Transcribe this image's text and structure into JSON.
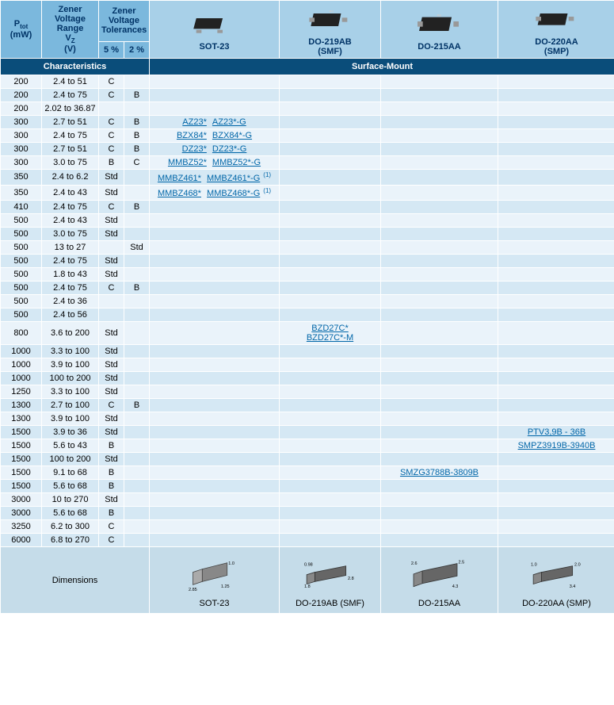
{
  "colors": {
    "header_bg": "#7bb8dd",
    "header2_bg": "#a8d0e8",
    "section_bg": "#0a4d7a",
    "row_even": "#eaf3fa",
    "row_odd": "#d5e8f4",
    "dim_bg": "#c5dce9",
    "link": "#0066a8",
    "border": "#ffffff"
  },
  "col_widths": [
    "52px",
    "72px",
    "32px",
    "32px",
    "164px",
    "128px",
    "148px",
    "148px"
  ],
  "header": {
    "ptot": "P",
    "ptot_sub": "tot",
    "ptot_unit": "(mW)",
    "vz_line1": "Zener",
    "vz_line2": "Voltage",
    "vz_line3": "Range",
    "vz_sym": "V",
    "vz_sub": "Z",
    "vz_unit": "(V)",
    "tol_line1": "Zener",
    "tol_line2": "Voltage",
    "tol_line3": "Tolerances",
    "tol5": "5 %",
    "tol2": "2 %",
    "pkg1": "SOT-23",
    "pkg2_l1": "DO-219AB",
    "pkg2_l2": "(SMF)",
    "pkg3": "DO-215AA",
    "pkg4_l1": "DO-220AA",
    "pkg4_l2": "(SMP)"
  },
  "section": {
    "left": "Characteristics",
    "right": "Surface-Mount"
  },
  "rows": [
    {
      "p": "200",
      "vz": "2.4 to 51",
      "t5": "C",
      "t2": "",
      "sot": [],
      "smf": [],
      "aa": [],
      "smp": []
    },
    {
      "p": "200",
      "vz": "2.4 to 75",
      "t5": "C",
      "t2": "B",
      "sot": [],
      "smf": [],
      "aa": [],
      "smp": []
    },
    {
      "p": "200",
      "vz": "2.02 to 36.87",
      "t5": "",
      "t2": "",
      "sot": [],
      "smf": [],
      "aa": [],
      "smp": []
    },
    {
      "p": "300",
      "vz": "2.7 to 51",
      "t5": "C",
      "t2": "B",
      "sot": [
        "AZ23*",
        "AZ23*-G"
      ],
      "smf": [],
      "aa": [],
      "smp": []
    },
    {
      "p": "300",
      "vz": "2.4 to 75",
      "t5": "C",
      "t2": "B",
      "sot": [
        "BZX84*",
        "BZX84*-G"
      ],
      "smf": [],
      "aa": [],
      "smp": []
    },
    {
      "p": "300",
      "vz": "2.7 to 51",
      "t5": "C",
      "t2": "B",
      "sot": [
        "DZ23*",
        "DZ23*-G"
      ],
      "smf": [],
      "aa": [],
      "smp": []
    },
    {
      "p": "300",
      "vz": "3.0 to 75",
      "t5": "B",
      "t2": "C",
      "sot": [
        "MMBZ52*",
        "MMBZ52*-G"
      ],
      "smf": [],
      "aa": [],
      "smp": []
    },
    {
      "p": "350",
      "vz": "2.4 to 6.2",
      "t5": "Std",
      "t2": "",
      "sot": [
        "MMBZ461*",
        "MMBZ461*-G"
      ],
      "sot_sup": "(1)",
      "smf": [],
      "aa": [],
      "smp": []
    },
    {
      "p": "350",
      "vz": "2.4 to 43",
      "t5": "Std",
      "t2": "",
      "sot": [
        "MMBZ468*",
        "MMBZ468*-G"
      ],
      "sot_sup": "(1)",
      "smf": [],
      "aa": [],
      "smp": []
    },
    {
      "p": "410",
      "vz": "2.4 to 75",
      "t5": "C",
      "t2": "B",
      "sot": [],
      "smf": [],
      "aa": [],
      "smp": []
    },
    {
      "p": "500",
      "vz": "2.4 to 43",
      "t5": "Std",
      "t2": "",
      "sot": [],
      "smf": [],
      "aa": [],
      "smp": []
    },
    {
      "p": "500",
      "vz": "3.0 to 75",
      "t5": "Std",
      "t2": "",
      "sot": [],
      "smf": [],
      "aa": [],
      "smp": []
    },
    {
      "p": "500",
      "vz": "13 to 27",
      "t5": "",
      "t2": "Std",
      "sot": [],
      "smf": [],
      "aa": [],
      "smp": []
    },
    {
      "p": "500",
      "vz": "2.4 to 75",
      "t5": "Std",
      "t2": "",
      "sot": [],
      "smf": [],
      "aa": [],
      "smp": []
    },
    {
      "p": "500",
      "vz": "1.8 to 43",
      "t5": "Std",
      "t2": "",
      "sot": [],
      "smf": [],
      "aa": [],
      "smp": []
    },
    {
      "p": "500",
      "vz": "2.4 to 75",
      "t5": "C",
      "t2": "B",
      "sot": [],
      "smf": [],
      "aa": [],
      "smp": []
    },
    {
      "p": "500",
      "vz": "2.4 to 36",
      "t5": "",
      "t2": "",
      "sot": [],
      "smf": [],
      "aa": [],
      "smp": []
    },
    {
      "p": "500",
      "vz": "2.4 to 56",
      "t5": "",
      "t2": "",
      "sot": [],
      "smf": [],
      "aa": [],
      "smp": []
    },
    {
      "p": "800",
      "vz": "3.6 to 200",
      "t5": "Std",
      "t2": "",
      "sot": [],
      "smf": [
        "BZD27C*",
        "BZD27C*-M"
      ],
      "aa": [],
      "smp": []
    },
    {
      "p": "1000",
      "vz": "3.3 to 100",
      "t5": "Std",
      "t2": "",
      "sot": [],
      "smf": [],
      "aa": [],
      "smp": []
    },
    {
      "p": "1000",
      "vz": "3.9 to 100",
      "t5": "Std",
      "t2": "",
      "sot": [],
      "smf": [],
      "aa": [],
      "smp": []
    },
    {
      "p": "1000",
      "vz": "100 to 200",
      "t5": "Std",
      "t2": "",
      "sot": [],
      "smf": [],
      "aa": [],
      "smp": []
    },
    {
      "p": "1250",
      "vz": "3.3 to 100",
      "t5": "Std",
      "t2": "",
      "sot": [],
      "smf": [],
      "aa": [],
      "smp": []
    },
    {
      "p": "1300",
      "vz": "2.7 to 100",
      "t5": "C",
      "t2": "B",
      "sot": [],
      "smf": [],
      "aa": [],
      "smp": []
    },
    {
      "p": "1300",
      "vz": "3.9 to 100",
      "t5": "Std",
      "t2": "",
      "sot": [],
      "smf": [],
      "aa": [],
      "smp": []
    },
    {
      "p": "1500",
      "vz": "3.9 to 36",
      "t5": "Std",
      "t2": "",
      "sot": [],
      "smf": [],
      "aa": [],
      "smp": [
        "PTV3,9B - 36B"
      ]
    },
    {
      "p": "1500",
      "vz": "5.6 to 43",
      "t5": "B",
      "t2": "",
      "sot": [],
      "smf": [],
      "aa": [],
      "smp": [
        "SMPZ3919B-3940B"
      ]
    },
    {
      "p": "1500",
      "vz": "100 to 200",
      "t5": "Std",
      "t2": "",
      "sot": [],
      "smf": [],
      "aa": [],
      "smp": []
    },
    {
      "p": "1500",
      "vz": "9.1 to 68",
      "t5": "B",
      "t2": "",
      "sot": [],
      "smf": [],
      "aa": [
        "SMZG3788B-3809B"
      ],
      "smp": []
    },
    {
      "p": "1500",
      "vz": "5.6 to 68",
      "t5": "B",
      "t2": "",
      "sot": [],
      "smf": [],
      "aa": [],
      "smp": []
    },
    {
      "p": "3000",
      "vz": "10 to 270",
      "t5": "Std",
      "t2": "",
      "sot": [],
      "smf": [],
      "aa": [],
      "smp": []
    },
    {
      "p": "3000",
      "vz": "5.6 to 68",
      "t5": "B",
      "t2": "",
      "sot": [],
      "smf": [],
      "aa": [],
      "smp": []
    },
    {
      "p": "3250",
      "vz": "6.2 to 300",
      "t5": "C",
      "t2": "",
      "sot": [],
      "smf": [],
      "aa": [],
      "smp": []
    },
    {
      "p": "6000",
      "vz": "6.8 to 270",
      "t5": "C",
      "t2": "",
      "sot": [],
      "smf": [],
      "aa": [],
      "smp": []
    }
  ],
  "dimensions": {
    "label": "Dimensions",
    "pkg1": "SOT-23",
    "pkg1_dims": {
      "w": "2.85",
      "h": "1.25",
      "d": "1.0"
    },
    "pkg2": "DO-219AB (SMF)",
    "pkg2_dims": {
      "w": "2.8",
      "h": "1.8",
      "t": "0.98"
    },
    "pkg3": "DO-215AA",
    "pkg3_dims": {
      "w": "4.3",
      "h": "2.6",
      "t": "2.5"
    },
    "pkg4": "DO-220AA (SMP)",
    "pkg4_dims": {
      "w": "3.4",
      "h": "2.0",
      "t": "1.0"
    }
  }
}
